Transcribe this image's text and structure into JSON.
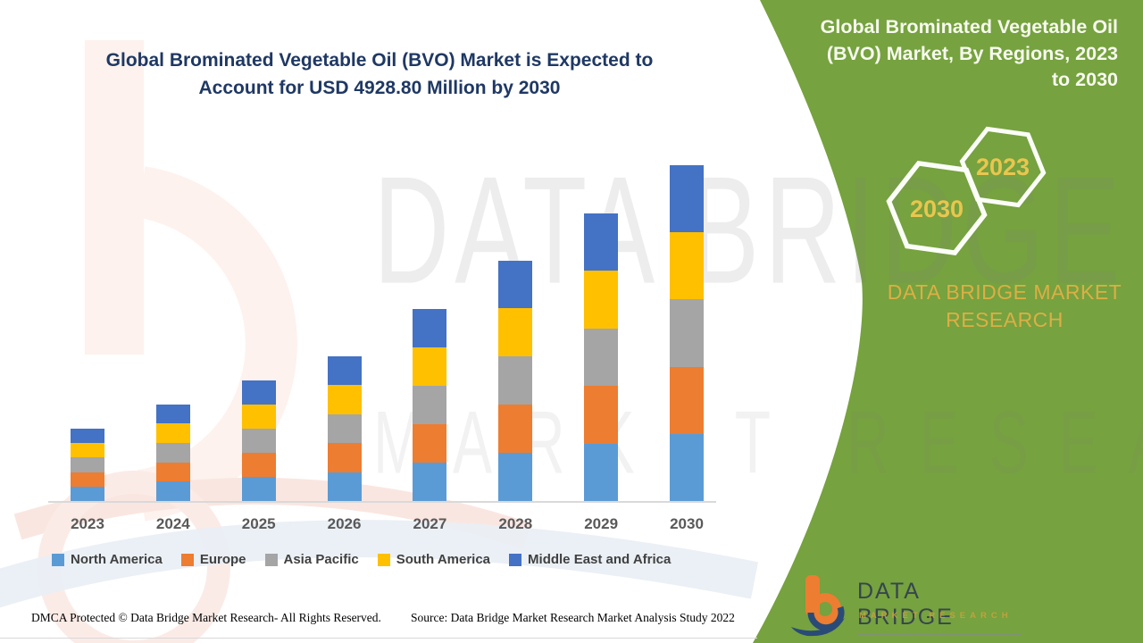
{
  "left_panel": {
    "title_line1": "Global Brominated Vegetable Oil (BVO) Market is Expected to",
    "title_line2": "Account for USD 4928.80 Million by 2030",
    "title_color": "#1F3864"
  },
  "chart_data": {
    "type": "bar",
    "stacked": true,
    "title": "Global Brominated Vegetable Oil (BVO) Market is Expected to Account for USD 4928.80 Million by 2030",
    "unit": "USD Million",
    "categories": [
      "2023",
      "2024",
      "2025",
      "2026",
      "2027",
      "2028",
      "2029",
      "2030"
    ],
    "series": [
      {
        "name": "North America",
        "color": "#5B9BD5",
        "values": [
          212,
          284,
          354,
          426,
          564,
          706,
          846,
          985.8
        ]
      },
      {
        "name": "Europe",
        "color": "#ED7D31",
        "values": [
          212,
          284,
          354,
          426,
          564,
          706,
          846,
          985.8
        ]
      },
      {
        "name": "Asia Pacific",
        "color": "#A5A5A5",
        "values": [
          212,
          284,
          354,
          426,
          564,
          706,
          846,
          985.8
        ]
      },
      {
        "name": "South America",
        "color": "#FFC000",
        "values": [
          212,
          284,
          354,
          426,
          564,
          706,
          846,
          985.8
        ]
      },
      {
        "name": "Middle East and Africa",
        "color": "#4472C4",
        "values": [
          212,
          284,
          354,
          426,
          564,
          706,
          846,
          985.8
        ]
      }
    ],
    "totals_estimated": [
      1060,
      1420,
      1770,
      2130,
      2820,
      3530,
      4230,
      4928.8
    ],
    "stated_value_2030": "USD 4928.80 Million",
    "ylim": [
      0,
      5200
    ],
    "grid": false,
    "y_axis_visible": false,
    "legend_position": "bottom"
  },
  "watermark": {
    "line1": "DATA BRIDGE",
    "line2": "MARKET RESEARCH"
  },
  "right_panel": {
    "bg_color": "#76A23F",
    "title_line1": "Global Brominated Vegetable Oil",
    "title_line2": "(BVO) Market, By Regions, 2023",
    "title_line3": "to 2030",
    "hex_front_year": "2030",
    "hex_back_year": "2023",
    "brand_line1": "DATA BRIDGE MARKET",
    "brand_line2": "RESEARCH"
  },
  "logo": {
    "name_text": "DATA BRIDGE",
    "sub_text": "MARKET RESEARCH"
  },
  "footer": {
    "dmca": "DMCA Protected © Data Bridge Market Research- All Rights Reserved.",
    "source": "Source: Data Bridge Market Research Market Analysis Study 2022"
  }
}
